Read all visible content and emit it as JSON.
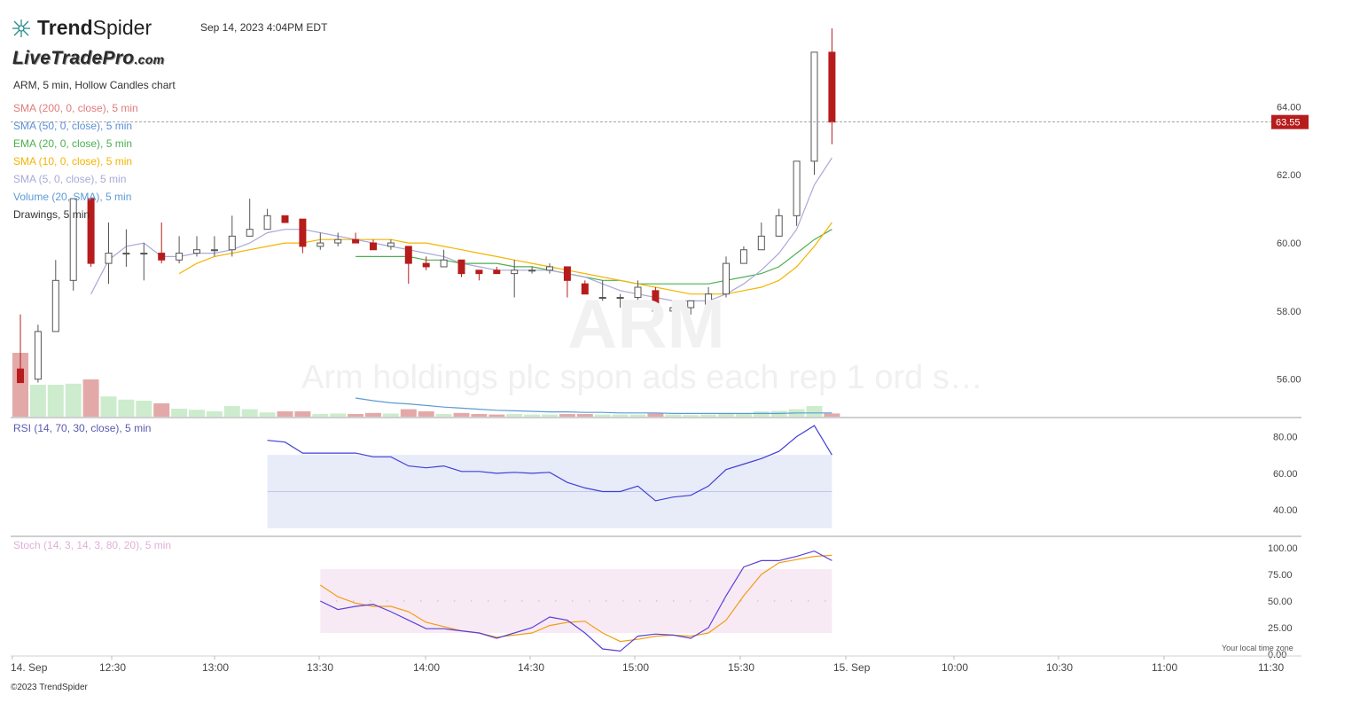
{
  "header": {
    "brand_prefix": "Trend",
    "brand_suffix": "Spider",
    "timestamp": "Sep 14, 2023 4:04PM EDT",
    "watermark_site": "LiveTradePro",
    "watermark_site_tld": ".com",
    "chart_title": "ARM, 5 min, Hollow Candles chart"
  },
  "legend": [
    {
      "label": "SMA (200, 0, close), 5 min",
      "color": "#e07b7b"
    },
    {
      "label": "SMA (50, 0, close), 5 min",
      "color": "#5b8fd6"
    },
    {
      "label": "EMA (20, 0, close), 5 min",
      "color": "#4caf50"
    },
    {
      "label": "SMA (10, 0, close), 5 min",
      "color": "#f4b400"
    },
    {
      "label": "SMA (5, 0, close), 5 min",
      "color": "#a9a9d8"
    },
    {
      "label": "Volume (20, SMA), 5 min",
      "color": "#5b9bd5"
    },
    {
      "label": "Drawings, 5 min",
      "color": "#333333"
    }
  ],
  "watermark": {
    "symbol": "ARM",
    "description": "Arm holdings plc spon ads each rep 1 ord s…"
  },
  "rsi_label": "RSI (14, 70, 30, close), 5 min",
  "stoch_label": "Stoch (14, 3, 14, 3, 80, 20), 5 min",
  "footer": {
    "copyright": "©2023 TrendSpider",
    "timezone_note": "Your local time zone"
  },
  "colors": {
    "up_candle": "#555555",
    "down_candle": "#b71c1c",
    "price_tag": "#b71c1c",
    "rsi_line": "#3f3fd6",
    "rsi_band": "#e8ebf8",
    "stoch_k": "#5a3fd6",
    "stoch_d": "#f39c12",
    "stoch_band": "#f8eaf5",
    "vol_up": "#cdeccd",
    "vol_down": "#e3a9a9"
  },
  "icons": [
    "trendspider-logo-icon"
  ],
  "chart_data": [
    {
      "type": "candlestick",
      "name": "ARM",
      "last_price_label": "63.55",
      "last_price": 63.55,
      "ylim": [
        54.9,
        66.3
      ],
      "y_ticks": [
        "56.00",
        "58.00",
        "60.00",
        "62.00",
        "64.00"
      ],
      "y_tick_values": [
        56,
        58,
        60,
        62,
        64
      ],
      "x_ticks": [
        "14. Sep",
        "12:30",
        "13:00",
        "13:30",
        "14:00",
        "14:30",
        "15:00",
        "15:30",
        "15. Sep",
        "10:00",
        "10:30",
        "11:00",
        "11:30"
      ],
      "candles": [
        {
          "o": 56.3,
          "h": 57.9,
          "l": 55.9,
          "c": 55.9
        },
        {
          "o": 56.0,
          "h": 57.6,
          "l": 55.9,
          "c": 57.4
        },
        {
          "o": 57.4,
          "h": 59.5,
          "l": 57.4,
          "c": 58.9
        },
        {
          "o": 58.9,
          "h": 61.3,
          "l": 58.6,
          "c": 61.3
        },
        {
          "o": 61.3,
          "h": 61.3,
          "l": 59.3,
          "c": 59.4
        },
        {
          "o": 59.4,
          "h": 60.6,
          "l": 58.8,
          "c": 59.7
        },
        {
          "o": 59.7,
          "h": 60.4,
          "l": 59.3,
          "c": 59.7
        },
        {
          "o": 59.7,
          "h": 60.0,
          "l": 58.9,
          "c": 59.7
        },
        {
          "o": 59.7,
          "h": 60.6,
          "l": 59.4,
          "c": 59.5
        },
        {
          "o": 59.5,
          "h": 60.2,
          "l": 59.4,
          "c": 59.7
        },
        {
          "o": 59.7,
          "h": 60.2,
          "l": 59.6,
          "c": 59.8
        },
        {
          "o": 59.8,
          "h": 60.2,
          "l": 59.6,
          "c": 59.8
        },
        {
          "o": 59.8,
          "h": 60.8,
          "l": 59.6,
          "c": 60.2
        },
        {
          "o": 60.2,
          "h": 61.3,
          "l": 60.2,
          "c": 60.4
        },
        {
          "o": 60.4,
          "h": 61.0,
          "l": 60.4,
          "c": 60.8
        },
        {
          "o": 60.8,
          "h": 60.8,
          "l": 60.6,
          "c": 60.6
        },
        {
          "o": 60.7,
          "h": 60.7,
          "l": 59.7,
          "c": 59.9
        },
        {
          "o": 59.9,
          "h": 60.3,
          "l": 59.8,
          "c": 60.0
        },
        {
          "o": 60.0,
          "h": 60.3,
          "l": 59.9,
          "c": 60.1
        },
        {
          "o": 60.1,
          "h": 60.3,
          "l": 60.0,
          "c": 60.0
        },
        {
          "o": 60.0,
          "h": 60.1,
          "l": 59.8,
          "c": 59.8
        },
        {
          "o": 59.9,
          "h": 60.1,
          "l": 59.8,
          "c": 60.0
        },
        {
          "o": 59.9,
          "h": 59.9,
          "l": 58.8,
          "c": 59.4
        },
        {
          "o": 59.4,
          "h": 59.6,
          "l": 59.2,
          "c": 59.3
        },
        {
          "o": 59.3,
          "h": 59.8,
          "l": 59.3,
          "c": 59.5
        },
        {
          "o": 59.5,
          "h": 59.5,
          "l": 59.0,
          "c": 59.1
        },
        {
          "o": 59.2,
          "h": 59.2,
          "l": 58.9,
          "c": 59.1
        },
        {
          "o": 59.2,
          "h": 59.3,
          "l": 59.1,
          "c": 59.1
        },
        {
          "o": 59.1,
          "h": 59.5,
          "l": 58.4,
          "c": 59.2
        },
        {
          "o": 59.2,
          "h": 59.3,
          "l": 59.1,
          "c": 59.2
        },
        {
          "o": 59.2,
          "h": 59.4,
          "l": 59.1,
          "c": 59.3
        },
        {
          "o": 59.3,
          "h": 59.3,
          "l": 58.4,
          "c": 58.9
        },
        {
          "o": 58.8,
          "h": 58.9,
          "l": 58.5,
          "c": 58.5
        },
        {
          "o": 58.4,
          "h": 58.9,
          "l": 58.3,
          "c": 58.4
        },
        {
          "o": 58.4,
          "h": 58.5,
          "l": 58.1,
          "c": 58.4
        },
        {
          "o": 58.4,
          "h": 58.9,
          "l": 58.2,
          "c": 58.7
        },
        {
          "o": 58.6,
          "h": 58.7,
          "l": 57.9,
          "c": 58.0
        },
        {
          "o": 58.0,
          "h": 58.2,
          "l": 57.9,
          "c": 58.1
        },
        {
          "o": 58.1,
          "h": 58.3,
          "l": 57.9,
          "c": 58.3
        },
        {
          "o": 58.2,
          "h": 58.7,
          "l": 58.1,
          "c": 58.5
        },
        {
          "o": 58.5,
          "h": 59.6,
          "l": 58.4,
          "c": 59.4
        },
        {
          "o": 59.4,
          "h": 59.9,
          "l": 59.4,
          "c": 59.8
        },
        {
          "o": 59.8,
          "h": 60.6,
          "l": 59.8,
          "c": 60.2
        },
        {
          "o": 60.2,
          "h": 61.0,
          "l": 60.2,
          "c": 60.8
        },
        {
          "o": 60.8,
          "h": 62.4,
          "l": 60.5,
          "c": 62.4
        },
        {
          "o": 62.4,
          "h": 65.6,
          "l": 62.0,
          "c": 65.6
        },
        {
          "o": 65.6,
          "h": 66.3,
          "l": 62.9,
          "c": 63.55
        }
      ],
      "volume": [
        1.2,
        0.6,
        0.6,
        0.62,
        0.7,
        0.38,
        0.32,
        0.3,
        0.25,
        0.15,
        0.13,
        0.1,
        0.2,
        0.14,
        0.08,
        0.1,
        0.1,
        0.05,
        0.06,
        0.05,
        0.07,
        0.06,
        0.14,
        0.1,
        0.05,
        0.07,
        0.05,
        0.04,
        0.05,
        0.04,
        0.04,
        0.05,
        0.05,
        0.04,
        0.04,
        0.04,
        0.06,
        0.04,
        0.03,
        0.04,
        0.05,
        0.06,
        0.1,
        0.11,
        0.14,
        0.2,
        0.06
      ],
      "sma5": [
        null,
        null,
        null,
        null,
        58.5,
        59.5,
        59.9,
        60.0,
        59.6,
        59.6,
        59.7,
        59.7,
        59.8,
        60.0,
        60.3,
        60.4,
        60.4,
        60.3,
        60.2,
        60.1,
        60.0,
        59.9,
        59.8,
        59.7,
        59.6,
        59.4,
        59.3,
        59.2,
        59.2,
        59.2,
        59.2,
        59.1,
        59.0,
        58.8,
        58.6,
        58.5,
        58.4,
        58.3,
        58.3,
        58.3,
        58.5,
        58.8,
        59.2,
        59.7,
        60.4,
        61.7,
        62.5
      ],
      "sma10": [
        null,
        null,
        null,
        null,
        null,
        null,
        null,
        null,
        null,
        59.1,
        59.4,
        59.6,
        59.7,
        59.8,
        59.9,
        60.0,
        60.0,
        60.1,
        60.1,
        60.1,
        60.1,
        60.1,
        60.0,
        60.0,
        59.9,
        59.8,
        59.7,
        59.6,
        59.5,
        59.4,
        59.3,
        59.2,
        59.1,
        59.0,
        58.9,
        58.8,
        58.7,
        58.6,
        58.5,
        58.5,
        58.5,
        58.6,
        58.7,
        58.9,
        59.3,
        59.9,
        60.6
      ],
      "ema20": [
        null,
        null,
        null,
        null,
        null,
        null,
        null,
        null,
        null,
        null,
        null,
        null,
        null,
        null,
        null,
        null,
        null,
        null,
        null,
        59.6,
        59.6,
        59.6,
        59.6,
        59.5,
        59.5,
        59.4,
        59.4,
        59.4,
        59.3,
        59.3,
        59.2,
        59.1,
        59.0,
        58.9,
        58.9,
        58.8,
        58.8,
        58.8,
        58.8,
        58.8,
        58.9,
        59.0,
        59.1,
        59.3,
        59.7,
        60.1,
        60.4
      ],
      "vol_sma20": [
        null,
        null,
        null,
        null,
        null,
        null,
        null,
        null,
        null,
        null,
        null,
        null,
        null,
        null,
        null,
        null,
        null,
        null,
        null,
        0.35,
        0.3,
        0.26,
        0.24,
        0.21,
        0.18,
        0.16,
        0.14,
        0.12,
        0.11,
        0.1,
        0.09,
        0.09,
        0.08,
        0.08,
        0.07,
        0.07,
        0.07,
        0.06,
        0.06,
        0.06,
        0.06,
        0.06,
        0.06,
        0.06,
        0.07,
        0.07,
        0.07
      ]
    },
    {
      "type": "line",
      "name": "RSI",
      "ylim": [
        28,
        88
      ],
      "y_ticks": [
        "40.00",
        "60.00",
        "80.00"
      ],
      "y_tick_values": [
        40,
        60,
        80
      ],
      "band": [
        30,
        70,
        50
      ],
      "start_index": 14,
      "values": [
        78,
        77,
        71,
        71,
        71,
        71,
        69,
        69,
        64,
        63,
        64,
        61,
        61,
        60,
        60.5,
        60,
        60.5,
        55,
        52,
        50,
        50,
        53,
        45,
        47,
        48,
        53,
        62,
        65,
        68,
        72,
        80,
        86,
        70
      ]
    },
    {
      "type": "line",
      "name": "Stoch",
      "ylim": [
        0,
        100
      ],
      "y_ticks": [
        "0.00",
        "25.00",
        "50.00",
        "75.00",
        "100.00"
      ],
      "y_tick_values": [
        0,
        25,
        50,
        75,
        100
      ],
      "band": [
        20,
        80,
        50
      ],
      "start_index": 17,
      "k": [
        50,
        42,
        45,
        47,
        40,
        32,
        24,
        24,
        22,
        20,
        15,
        20,
        25,
        35,
        32,
        20,
        5,
        3,
        17,
        19,
        18,
        15,
        25,
        55,
        82,
        88,
        88,
        92,
        97,
        88
      ],
      "d": [
        65,
        54,
        48,
        45,
        45,
        40,
        30,
        26,
        22,
        20,
        16,
        18,
        20,
        27,
        30,
        31,
        20,
        12,
        14,
        17,
        18,
        17,
        20,
        32,
        55,
        75,
        86,
        89,
        92,
        93
      ]
    }
  ]
}
